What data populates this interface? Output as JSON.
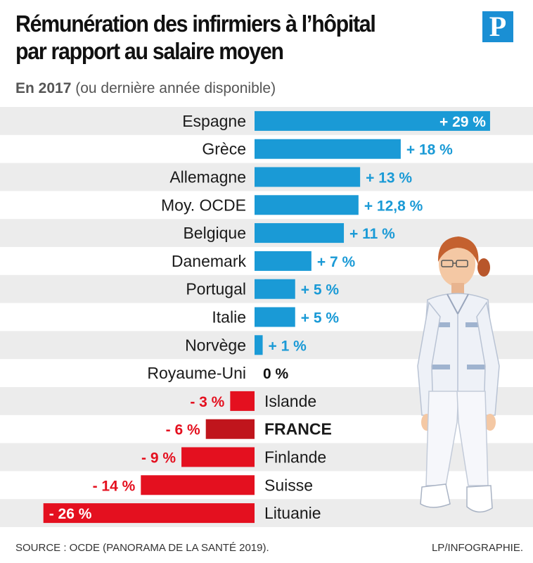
{
  "title_lines": [
    "Rémunération des infirmiers à l’hôpital",
    "par rapport au salaire moyen"
  ],
  "subtitle": {
    "strong": "En 2017",
    "rest": " (ou dernière année disponible)"
  },
  "logo_text": "P",
  "source": "SOURCE : OCDE (PANORAMA DE LA SANTÉ 2019).",
  "credit": "LP/INFOGRAPHIE.",
  "colors": {
    "positive": "#1a9ad6",
    "negative": "#e4101f",
    "highlight": "#c0151c",
    "row_band": "#ececec",
    "logo": "#1a8fd4"
  },
  "illustration": "nurse-illustration",
  "chart_data": {
    "type": "bar",
    "orientation": "horizontal",
    "title": "Rémunération des infirmiers à l’hôpital par rapport au salaire moyen",
    "subtitle": "En 2017 (ou dernière année disponible)",
    "unit": "%",
    "xlim": [
      -26,
      29
    ],
    "grid": false,
    "highlight": "FRANCE",
    "categories": [
      "Espagne",
      "Grèce",
      "Allemagne",
      "Moy. OCDE",
      "Belgique",
      "Danemark",
      "Portugal",
      "Italie",
      "Norvège",
      "Royaume-Uni",
      "Islande",
      "FRANCE",
      "Finlande",
      "Suisse",
      "Lituanie"
    ],
    "values": [
      29,
      18,
      13,
      12.8,
      11,
      7,
      5,
      5,
      1,
      0,
      -3,
      -6,
      -9,
      -14,
      -26
    ],
    "labels": [
      "+ 29 %",
      "+ 18 %",
      "+ 13 %",
      "+ 12,8 %",
      "+ 11 %",
      "+ 7 %",
      "+ 5 %",
      "+ 5 %",
      "+ 1 %",
      "0 %",
      "- 3 %",
      "- 6 %",
      "- 9 %",
      "- 14 %",
      "- 26 %"
    ]
  }
}
